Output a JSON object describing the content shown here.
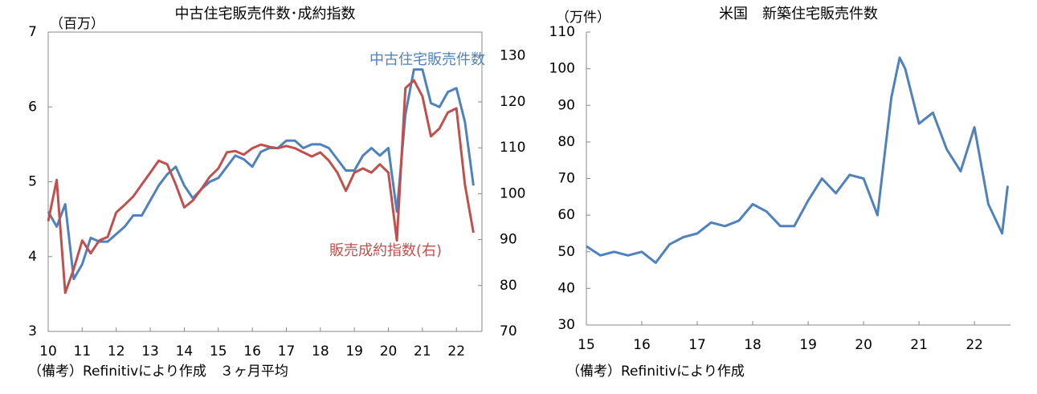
{
  "chart_data": [
    {
      "type": "line",
      "title": "中古住宅販売件数･成約指数",
      "y_label": "（百万）",
      "footnote": "（備考）Refinitivにより作成　３ヶ月平均",
      "x": [
        10,
        10.25,
        10.5,
        10.75,
        11,
        11.25,
        11.5,
        11.75,
        12,
        12.25,
        12.5,
        12.75,
        13,
        13.25,
        13.5,
        13.75,
        14,
        14.25,
        14.5,
        14.75,
        15,
        15.25,
        15.5,
        15.75,
        16,
        16.25,
        16.5,
        16.75,
        17,
        17.25,
        17.5,
        17.75,
        18,
        18.25,
        18.5,
        18.75,
        19,
        19.25,
        19.5,
        19.75,
        20,
        20.25,
        20.5,
        20.75,
        21,
        21.25,
        21.5,
        21.75,
        22,
        22.25,
        22.5
      ],
      "xlim": [
        10,
        22.75
      ],
      "xticks": [
        10,
        11,
        12,
        13,
        14,
        15,
        16,
        17,
        18,
        19,
        20,
        21,
        22
      ],
      "ylim": [
        3,
        7
      ],
      "yticks": [
        3,
        4,
        5,
        6,
        7
      ],
      "y2lim": [
        70,
        135.2
      ],
      "y2ticks": [
        70,
        80,
        90,
        100,
        110,
        120,
        130
      ],
      "series": [
        {
          "name": "中古住宅販売件数",
          "color": "#4f81bd",
          "values": [
            4.6,
            4.4,
            4.7,
            3.7,
            3.9,
            4.25,
            4.2,
            4.2,
            4.3,
            4.4,
            4.55,
            4.55,
            4.75,
            4.95,
            5.1,
            5.2,
            4.95,
            4.78,
            4.9,
            5.0,
            5.05,
            5.2,
            5.35,
            5.3,
            5.2,
            5.4,
            5.45,
            5.45,
            5.55,
            5.55,
            5.45,
            5.5,
            5.5,
            5.45,
            5.3,
            5.15,
            5.15,
            5.35,
            5.45,
            5.35,
            5.45,
            4.6,
            5.9,
            6.5,
            6.5,
            6.05,
            6.0,
            6.2,
            6.25,
            5.8,
            4.95
          ]
        },
        {
          "name": "販売成約指数(右)",
          "color": "#c0504d",
          "axis": "y2",
          "values": [
            94,
            103,
            78.4,
            83.6,
            89.8,
            87,
            89.8,
            90.6,
            95.9,
            97.6,
            99.4,
            102,
            104.6,
            107.2,
            106.4,
            102,
            97,
            98.5,
            101,
            103.7,
            105.5,
            109,
            109.3,
            108.5,
            109.9,
            110.7,
            110.2,
            109.9,
            110.4,
            109.9,
            109,
            108.1,
            109,
            107.2,
            104.6,
            100.6,
            104.6,
            105.5,
            104.6,
            106.4,
            104.6,
            89.8,
            123,
            124.7,
            121.2,
            112.5,
            114.2,
            117.7,
            118.6,
            102,
            91.5
          ]
        }
      ]
    },
    {
      "type": "line",
      "title": "米国　新築住宅販売件数",
      "y_label": "（万件）",
      "footnote": "（備考）Refinitivにより作成",
      "x": [
        15,
        15.25,
        15.5,
        15.75,
        16,
        16.25,
        16.5,
        16.75,
        17,
        17.25,
        17.5,
        17.75,
        18,
        18.25,
        18.5,
        18.75,
        19,
        19.25,
        19.5,
        19.75,
        20,
        20.25,
        20.5,
        20.65,
        20.75,
        21,
        21.25,
        21.5,
        21.75,
        22,
        22.25,
        22.5,
        22.6
      ],
      "xlim": [
        15,
        22.65
      ],
      "xticks": [
        15,
        16,
        17,
        18,
        19,
        20,
        21,
        22
      ],
      "ylim": [
        30,
        110
      ],
      "yticks": [
        30,
        40,
        50,
        60,
        70,
        80,
        90,
        100,
        110
      ],
      "series": [
        {
          "name": null,
          "color": "#4f81bd",
          "values": [
            51.5,
            49,
            50,
            49,
            50,
            47,
            52,
            54,
            55,
            58,
            57,
            58.5,
            63,
            61,
            57,
            57,
            64,
            70,
            66,
            71,
            70,
            60,
            92,
            103,
            100,
            85,
            88,
            78,
            72,
            84,
            63,
            55,
            68
          ]
        }
      ]
    }
  ]
}
